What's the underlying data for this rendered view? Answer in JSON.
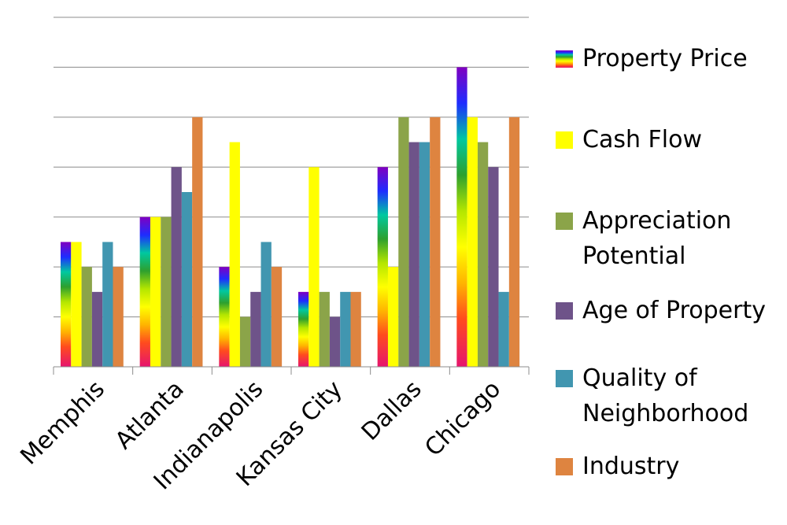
{
  "chart_data": {
    "type": "bar",
    "title": "",
    "xlabel": "",
    "ylabel": "",
    "ylim": [
      0,
      7
    ],
    "grid": true,
    "legend_position": "right",
    "categories": [
      "Memphis",
      "Atlanta",
      "Indianapolis",
      "Kansas City",
      "Dallas",
      "Chicago"
    ],
    "series": [
      {
        "name": "Property Price",
        "color": "rainbow-gradient",
        "values": [
          2.5,
          3,
          2,
          1.5,
          4,
          6
        ]
      },
      {
        "name": "Cash Flow",
        "color": "#FFFF00",
        "values": [
          2.5,
          3,
          4.5,
          4,
          2,
          5
        ]
      },
      {
        "name": "Appreciation Potential",
        "color": "#8BA449",
        "values": [
          2,
          3,
          1,
          1.5,
          5,
          4.5
        ]
      },
      {
        "name": "Age of Property",
        "color": "#6E5389",
        "values": [
          1.5,
          4,
          1.5,
          1,
          4.5,
          4
        ]
      },
      {
        "name": "Quality of Neighborhood",
        "color": "#4196B0",
        "values": [
          2.5,
          3.5,
          2.5,
          1.5,
          4.5,
          1.5
        ]
      },
      {
        "name": "Industry",
        "color": "#DE8440",
        "values": [
          2,
          5,
          2,
          1.5,
          5,
          5
        ]
      }
    ]
  }
}
